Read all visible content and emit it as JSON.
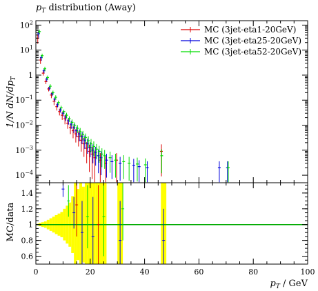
{
  "chart_data": {
    "type": "scatter",
    "title": "p_T distribution (Away)",
    "title_main": "p",
    "title_sub": "T",
    "title_rest": " distribution (Away)",
    "xlabel": "p_T / GeV",
    "xlabel_main": "p",
    "xlabel_sub": "T",
    "xlabel_rest": " / GeV",
    "ylabel": "1/N dN/dp_T",
    "ylabel_text": "1/N dN/dp",
    "ylabel_sub": "T",
    "ratio_ylabel": "MC/data",
    "xlim": [
      0,
      100
    ],
    "ylim_log": [
      5e-05,
      150
    ],
    "ratio_ylim": [
      0.5,
      1.53
    ],
    "x_ticks": [
      0,
      20,
      40,
      60,
      80,
      100
    ],
    "x_tick_labels": [
      "0",
      "20",
      "40",
      "60",
      "80",
      "100"
    ],
    "y_ticks": [
      0.0001,
      0.001,
      0.01,
      0.1,
      1,
      10,
      100
    ],
    "y_tick_labels": [
      {
        "b": "10",
        "e": "−4"
      },
      {
        "b": "10",
        "e": "−3"
      },
      {
        "b": "10",
        "e": "−2"
      },
      {
        "b": "10",
        "e": "−1"
      },
      {
        "b": "1",
        "e": ""
      },
      {
        "b": "10",
        "e": "1"
      },
      {
        "b": "10",
        "e": "2"
      }
    ],
    "ratio_ticks": [
      0.6,
      0.8,
      1.0,
      1.2,
      1.4
    ],
    "ratio_tick_labels": [
      "0.6",
      "0.8",
      "1",
      "1.2",
      "1.4"
    ],
    "legend_position": "top-right",
    "series": [
      {
        "name": "MC (3jet-eta1-20GeV)",
        "color": "#dd0000",
        "points": [
          [
            1,
            30,
            0.4
          ],
          [
            2,
            4,
            0.3
          ],
          [
            3,
            1.2,
            0.2
          ],
          [
            4,
            0.55,
            0.2
          ],
          [
            5,
            0.28,
            0.2
          ],
          [
            6,
            0.16,
            0.25
          ],
          [
            7,
            0.09,
            0.3
          ],
          [
            8,
            0.055,
            0.3
          ],
          [
            9,
            0.035,
            0.3
          ],
          [
            10,
            0.025,
            0.35
          ],
          [
            11,
            0.018,
            0.4
          ],
          [
            12,
            0.012,
            0.4
          ],
          [
            13,
            0.008,
            0.45
          ],
          [
            14,
            0.006,
            0.5
          ],
          [
            15,
            0.0045,
            0.55
          ],
          [
            16,
            0.0035,
            0.6
          ],
          [
            17,
            0.0025,
            0.65
          ],
          [
            18,
            0.0018,
            0.7
          ],
          [
            19,
            0.0012,
            0.75
          ],
          [
            20,
            0.0009,
            0.85
          ],
          [
            21,
            0.0007,
            0.9
          ],
          [
            22,
            0.0005,
            0.9
          ],
          [
            24,
            0.0004,
            0.9
          ],
          [
            26,
            0.0003,
            0.9
          ],
          [
            30,
            0.0004,
            0.9
          ],
          [
            46.5,
            0.0009,
            0.9
          ]
        ]
      },
      {
        "name": "MC (3jet-eta25-20GeV)",
        "color": "#0000dd",
        "points": [
          [
            1,
            45,
            0.3
          ],
          [
            2,
            5,
            0.25
          ],
          [
            3,
            1.5,
            0.2
          ],
          [
            4,
            0.7,
            0.2
          ],
          [
            5,
            0.3,
            0.2
          ],
          [
            6,
            0.18,
            0.2
          ],
          [
            7,
            0.11,
            0.2
          ],
          [
            8,
            0.065,
            0.2
          ],
          [
            9,
            0.04,
            0.2
          ],
          [
            10,
            0.03,
            0.25
          ],
          [
            11,
            0.021,
            0.3
          ],
          [
            12,
            0.015,
            0.3
          ],
          [
            13,
            0.011,
            0.35
          ],
          [
            14,
            0.008,
            0.4
          ],
          [
            15,
            0.006,
            0.45
          ],
          [
            16,
            0.0045,
            0.5
          ],
          [
            17,
            0.0035,
            0.5
          ],
          [
            18,
            0.0025,
            0.55
          ],
          [
            19,
            0.0018,
            0.6
          ],
          [
            20,
            0.0013,
            0.6
          ],
          [
            21,
            0.001,
            0.7
          ],
          [
            22,
            0.0008,
            0.7
          ],
          [
            23,
            0.0006,
            0.8
          ],
          [
            24,
            0.0005,
            0.8
          ],
          [
            26,
            0.0004,
            0.8
          ],
          [
            28,
            0.00035,
            0.8
          ],
          [
            31,
            0.0003,
            0.8
          ],
          [
            36,
            0.00025,
            0.8
          ],
          [
            38,
            0.00022,
            0.8
          ],
          [
            41,
            0.0002,
            0.8
          ],
          [
            67.5,
            0.0002,
            0.8
          ],
          [
            70.5,
            0.0002,
            0.8
          ]
        ]
      },
      {
        "name": "MC (3jet-eta52-20GeV)",
        "color": "#00dd00",
        "points": [
          [
            1,
            55,
            0.2
          ],
          [
            2,
            6,
            0.2
          ],
          [
            3,
            1.8,
            0.2
          ],
          [
            4,
            0.8,
            0.2
          ],
          [
            5,
            0.36,
            0.2
          ],
          [
            6,
            0.2,
            0.2
          ],
          [
            7,
            0.13,
            0.2
          ],
          [
            8,
            0.08,
            0.2
          ],
          [
            9,
            0.05,
            0.2
          ],
          [
            10,
            0.035,
            0.2
          ],
          [
            11,
            0.025,
            0.25
          ],
          [
            12,
            0.018,
            0.25
          ],
          [
            13,
            0.013,
            0.3
          ],
          [
            14,
            0.01,
            0.3
          ],
          [
            15,
            0.0075,
            0.35
          ],
          [
            16,
            0.0055,
            0.4
          ],
          [
            17,
            0.0042,
            0.4
          ],
          [
            18,
            0.0032,
            0.45
          ],
          [
            19,
            0.0024,
            0.5
          ],
          [
            20,
            0.0018,
            0.55
          ],
          [
            21,
            0.0014,
            0.6
          ],
          [
            22,
            0.0011,
            0.6
          ],
          [
            23,
            0.0009,
            0.65
          ],
          [
            24,
            0.0007,
            0.7
          ],
          [
            25,
            0.0006,
            0.7
          ],
          [
            27,
            0.0005,
            0.75
          ],
          [
            29,
            0.0004,
            0.8
          ],
          [
            32,
            0.00035,
            0.8
          ],
          [
            34,
            0.0003,
            0.8
          ],
          [
            37,
            0.00028,
            0.8
          ],
          [
            40,
            0.00026,
            0.8
          ],
          [
            46,
            0.0006,
            0.8
          ],
          [
            70.5,
            0.0002,
            0.8
          ]
        ]
      }
    ],
    "ratio_band": [
      [
        0.5,
        1,
        0.99,
        1.01
      ],
      [
        1,
        2,
        0.98,
        1.02
      ],
      [
        2,
        3,
        0.97,
        1.03
      ],
      [
        3,
        4,
        0.96,
        1.04
      ],
      [
        4,
        5,
        0.94,
        1.06
      ],
      [
        5,
        6,
        0.92,
        1.08
      ],
      [
        6,
        7,
        0.9,
        1.1
      ],
      [
        7,
        8,
        0.88,
        1.12
      ],
      [
        8,
        9,
        0.86,
        1.14
      ],
      [
        9,
        10,
        0.84,
        1.16
      ],
      [
        10,
        11,
        0.8,
        1.2
      ],
      [
        11,
        12,
        0.76,
        1.24
      ],
      [
        12,
        13,
        0.72,
        1.28
      ],
      [
        13,
        14,
        0.64,
        1.36
      ],
      [
        14,
        15,
        0.5,
        1.53
      ],
      [
        15,
        16,
        0.55,
        1.45
      ],
      [
        16,
        17,
        0.5,
        1.53
      ],
      [
        17,
        18,
        0.52,
        1.48
      ],
      [
        18,
        19,
        0.5,
        1.53
      ],
      [
        19,
        20,
        0.5,
        1.53
      ],
      [
        20,
        21,
        0.5,
        1.53
      ],
      [
        21,
        22,
        0.5,
        1.53
      ],
      [
        22,
        23,
        0.5,
        1.53
      ],
      [
        23,
        24,
        0.5,
        1.53
      ],
      [
        24,
        25,
        0.5,
        1.53
      ],
      [
        25,
        26,
        0.5,
        1.53
      ],
      [
        30,
        32,
        0.5,
        1.53
      ],
      [
        46,
        48,
        0.5,
        1.53
      ]
    ],
    "ratio_band_color": "#ffff00",
    "ratio_reference": 1.0,
    "ratio_reference_color": "#00aa00",
    "ratio_points": [
      [
        10,
        1.45,
        0.1,
        "#0000dd"
      ],
      [
        12,
        1.3,
        0.2,
        "#00dd00"
      ],
      [
        14,
        1.15,
        0.2,
        "#0000dd"
      ],
      [
        15,
        1.25,
        0.4,
        "#dd0000"
      ],
      [
        17,
        0.9,
        0.4,
        "#0000dd"
      ],
      [
        19,
        1.1,
        0.4,
        "#00dd00"
      ],
      [
        21,
        0.85,
        0.5,
        "#0000dd"
      ],
      [
        23,
        1.0,
        0.5,
        "#dd0000"
      ],
      [
        25,
        1.1,
        0.5,
        "#00dd00"
      ],
      [
        31,
        0.8,
        0.5,
        "#0000dd"
      ],
      [
        32,
        1.2,
        0.4,
        "#00dd00"
      ],
      [
        47,
        0.8,
        0.4,
        "#0000dd"
      ]
    ]
  }
}
